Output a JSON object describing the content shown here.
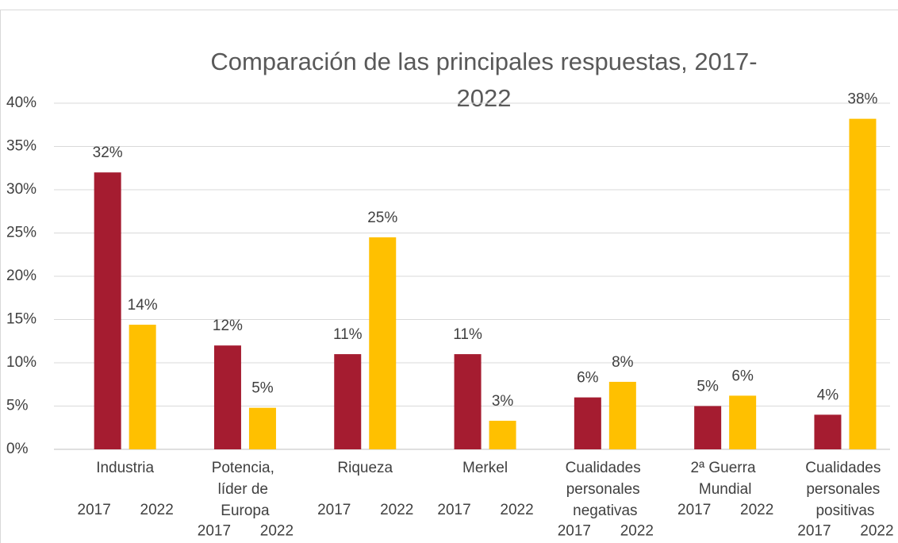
{
  "chart_data": {
    "type": "bar",
    "title": "Comparación de las principales respuestas, 2017-2022",
    "categories": [
      "Industria",
      "Potencia, líder de Europa",
      "Riqueza",
      "Merkel",
      "Cualidades personales negativas",
      "2ª Guerra Mundial",
      "Cualidades personales positivas"
    ],
    "series": [
      {
        "name": "2017",
        "color": "#a51c30",
        "values": [
          32,
          12,
          11,
          11,
          6,
          5,
          4
        ],
        "value_labels": [
          "32%",
          "12%",
          "11%",
          "11%",
          "6%",
          "5%",
          "4%"
        ]
      },
      {
        "name": "2022",
        "color": "#ffc000",
        "values": [
          14.4,
          4.8,
          24.5,
          3.3,
          7.8,
          6.2,
          38.2
        ],
        "value_labels": [
          "14%",
          "5%",
          "25%",
          "3%",
          "8%",
          "6%",
          "38%"
        ]
      }
    ],
    "ylim": [
      0,
      40
    ],
    "yticks": [
      {
        "value": 0,
        "label": "0%"
      },
      {
        "value": 5,
        "label": "5%"
      },
      {
        "value": 10,
        "label": "10%"
      },
      {
        "value": 15,
        "label": "15%"
      },
      {
        "value": 20,
        "label": "20%"
      },
      {
        "value": 25,
        "label": "25%"
      },
      {
        "value": 30,
        "label": "30%"
      },
      {
        "value": 35,
        "label": "35%"
      },
      {
        "value": 40,
        "label": "40%"
      }
    ],
    "grid": true
  }
}
